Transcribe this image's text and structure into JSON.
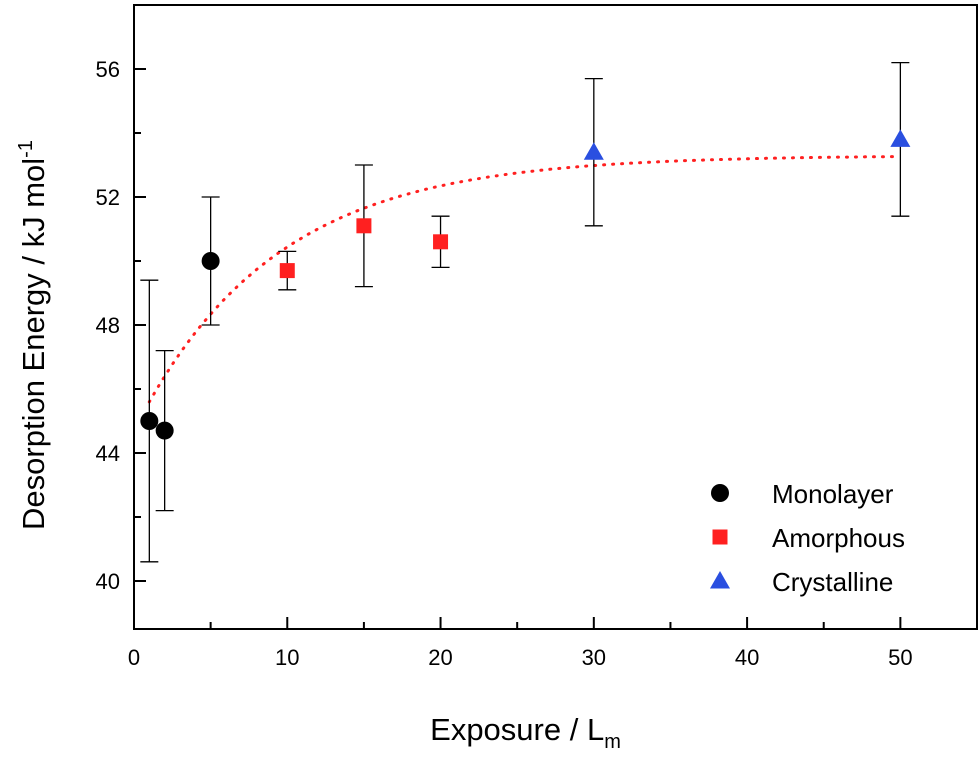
{
  "chart_data": {
    "type": "scatter",
    "xlabel": "Exposure / L",
    "xlabel_sub": "m",
    "ylabel": "Desorption Energy / kJ mol",
    "ylabel_sup": "-1",
    "xlim": [
      0,
      55
    ],
    "ylim": [
      38.5,
      58
    ],
    "xticks": [
      0,
      10,
      20,
      30,
      40,
      50
    ],
    "yticks": [
      40,
      44,
      48,
      52,
      56
    ],
    "legend_position": "bottom-right",
    "grid": false,
    "series": [
      {
        "name": "Monolayer",
        "marker": "circle",
        "color": "#000000",
        "points": [
          {
            "x": 1,
            "y": 45.0,
            "err": 4.4
          },
          {
            "x": 2,
            "y": 44.7,
            "err": 2.5
          },
          {
            "x": 5,
            "y": 50.0,
            "err": 2.0
          }
        ]
      },
      {
        "name": "Amorphous",
        "marker": "square",
        "color": "#ff2020",
        "points": [
          {
            "x": 10,
            "y": 49.7,
            "err": 0.6
          },
          {
            "x": 15,
            "y": 51.1,
            "err": 1.9
          },
          {
            "x": 20,
            "y": 50.6,
            "err": 0.8
          }
        ]
      },
      {
        "name": "Crystalline",
        "marker": "triangle",
        "color": "#2a4fe0",
        "points": [
          {
            "x": 30,
            "y": 53.4,
            "err": 2.3
          },
          {
            "x": 50,
            "y": 53.8,
            "err": 2.4
          }
        ]
      }
    ],
    "fit": {
      "style": "dotted",
      "color": "#ff2020",
      "model": "exponential",
      "x_range": [
        1,
        50
      ],
      "y0": 53.3,
      "amplitude": 8.6,
      "rate": 0.11
    }
  }
}
